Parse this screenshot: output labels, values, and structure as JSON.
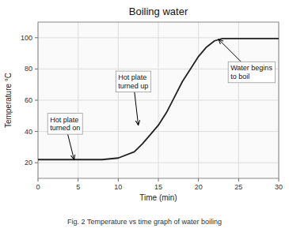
{
  "chart_data": {
    "type": "line",
    "title": "Boiling water",
    "xlabel": "Time (min)",
    "ylabel": "Temperature °C",
    "caption": "Fig. 2 Temperature vs time graph of water boiling",
    "xlim": [
      0,
      30
    ],
    "ylim": [
      10,
      110
    ],
    "xticks": [
      0,
      5,
      10,
      15,
      20,
      25,
      30
    ],
    "yticks": [
      20,
      40,
      60,
      80,
      100
    ],
    "grid": true,
    "color": "#222222",
    "x": [
      0,
      4,
      5,
      8,
      10,
      12,
      13,
      14,
      15,
      16,
      17,
      18,
      19,
      20,
      21,
      22,
      23,
      24,
      26,
      28,
      30
    ],
    "values": [
      22,
      22,
      22,
      22,
      23,
      27,
      32,
      38,
      44,
      52,
      62,
      72,
      80,
      88,
      94,
      98,
      99.5,
      99.5,
      99.5,
      99.5,
      99.5
    ],
    "annotations": [
      {
        "text": "Hot plate\nturned on",
        "xy": [
          4.5,
          22
        ],
        "xytext": [
          1.5,
          45
        ]
      },
      {
        "text": "Hot plate\nturned up",
        "xy": [
          12.5,
          44
        ],
        "xytext": [
          10.0,
          72
        ]
      },
      {
        "text": "Water begins\nto boil",
        "xy": [
          22.5,
          99
        ],
        "xytext": [
          24.0,
          78
        ]
      }
    ]
  }
}
